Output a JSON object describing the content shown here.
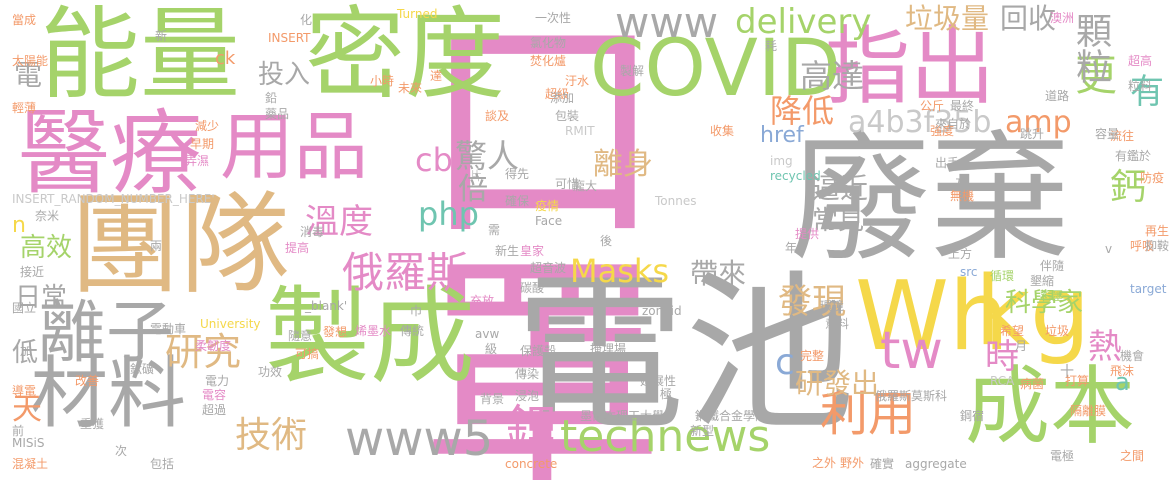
{
  "palette": {
    "green": "#a5d36a",
    "pink": "#e48ac6",
    "gray": "#a8a8a8",
    "tan": "#e0b983",
    "orange": "#f39a6a",
    "yellow": "#f5d84a",
    "blue": "#8aa9d6",
    "teal": "#6fc5b0",
    "lightgray": "#c9c9c9"
  },
  "words": [
    {
      "text": "口罩",
      "color": "pink",
      "vertical": true
    },
    {
      "text": "電池",
      "color": "gray"
    },
    {
      "text": "廢棄",
      "color": "gray"
    },
    {
      "text": "能量",
      "color": "green"
    },
    {
      "text": "密度",
      "color": "green"
    },
    {
      "text": "團隊",
      "color": "tan"
    },
    {
      "text": "醫療",
      "color": "pink"
    },
    {
      "text": "製成",
      "color": "green"
    },
    {
      "text": "指出",
      "color": "pink"
    },
    {
      "text": "Wh",
      "color": "yellow"
    },
    {
      "text": "kg",
      "color": "yellow"
    },
    {
      "text": "成本",
      "color": "green"
    },
    {
      "text": "材料",
      "color": "gray"
    },
    {
      "text": "COVID",
      "color": "green"
    },
    {
      "text": "用品",
      "color": "pink"
    },
    {
      "text": "離子",
      "color": "gray"
    },
    {
      "text": "www5",
      "color": "gray"
    },
    {
      "text": "technews",
      "color": "green"
    },
    {
      "text": "俄羅斯",
      "color": "pink"
    },
    {
      "text": "www",
      "color": "gray"
    },
    {
      "text": "更",
      "color": "green"
    },
    {
      "text": "delivery",
      "color": "green"
    },
    {
      "text": "Masks",
      "color": "yellow"
    },
    {
      "text": "tw",
      "color": "pink"
    },
    {
      "text": "鋰",
      "color": "pink"
    },
    {
      "text": "利用",
      "color": "orange"
    },
    {
      "text": "研究",
      "color": "tan"
    },
    {
      "text": "技術",
      "color": "tan"
    },
    {
      "text": "php",
      "color": "teal"
    },
    {
      "text": "cb",
      "color": "pink"
    },
    {
      "text": "amp",
      "color": "orange"
    },
    {
      "text": "溫度",
      "color": "pink"
    },
    {
      "text": "垃圾量",
      "color": "tan"
    },
    {
      "text": "顆粒",
      "color": "gray"
    },
    {
      "text": "高達",
      "color": "gray"
    },
    {
      "text": "降低",
      "color": "orange"
    },
    {
      "text": "a4b3f35b",
      "color": "lightgray"
    },
    {
      "text": "回收",
      "color": "gray"
    },
    {
      "text": "驚人",
      "color": "gray"
    },
    {
      "text": "倍",
      "color": "gray"
    },
    {
      "text": "離身",
      "color": "tan"
    },
    {
      "text": "逼近",
      "color": "gray"
    },
    {
      "text": "常見",
      "color": "gray"
    },
    {
      "text": "發現",
      "color": "tan"
    },
    {
      "text": "科學家",
      "color": "green"
    },
    {
      "text": "熱",
      "color": "pink"
    },
    {
      "text": "時",
      "color": "pink"
    },
    {
      "text": "帶來",
      "color": "gray"
    },
    {
      "text": "研發出",
      "color": "tan"
    },
    {
      "text": "有",
      "color": "teal"
    },
    {
      "text": "鈣",
      "color": "green"
    },
    {
      "text": "投入",
      "color": "gray"
    },
    {
      "text": "高效",
      "color": "green"
    },
    {
      "text": "日常",
      "color": "gray"
    },
    {
      "text": "電",
      "color": "gray"
    },
    {
      "text": "天",
      "color": "orange"
    },
    {
      "text": "低",
      "color": "gray"
    },
    {
      "text": "href",
      "color": "blue"
    },
    {
      "text": "c",
      "color": "blue"
    },
    {
      "text": "n",
      "color": "yellow"
    },
    {
      "text": "ck",
      "color": "orange"
    },
    {
      "text": "a",
      "color": "teal"
    },
    {
      "text": "INSERT_RANDOM_NUMBER_HERE'",
      "color": "lightgray"
    },
    {
      "text": "太陽能",
      "color": "orange"
    },
    {
      "text": "超高",
      "color": "pink"
    },
    {
      "text": "粒料",
      "color": "gray"
    },
    {
      "text": "澳洲",
      "color": "pink"
    },
    {
      "text": "氯化物",
      "color": "gray"
    },
    {
      "text": "一次性",
      "color": "gray"
    },
    {
      "text": "Turned",
      "color": "yellow"
    },
    {
      "text": "當成",
      "color": "orange"
    },
    {
      "text": "化",
      "color": "gray"
    },
    {
      "text": "焚化爐",
      "color": "orange"
    },
    {
      "text": "製解",
      "color": "gray"
    },
    {
      "text": "汙水",
      "color": "orange"
    },
    {
      "text": "超級",
      "color": "orange"
    },
    {
      "text": "包裝",
      "color": "gray"
    },
    {
      "text": "RMIT",
      "color": "lightgray"
    },
    {
      "text": "收集",
      "color": "orange"
    },
    {
      "text": "img",
      "color": "lightgray"
    },
    {
      "text": "recycled",
      "color": "teal"
    },
    {
      "text": "Tonnes",
      "color": "lightgray"
    },
    {
      "text": "Face",
      "color": "gray"
    },
    {
      "text": "新生",
      "color": "gray"
    },
    {
      "text": "疫情",
      "color": "yellow"
    },
    {
      "text": "超音波",
      "color": "gray"
    },
    {
      "text": "皇家",
      "color": "pink"
    },
    {
      "text": "碳酸",
      "color": "gray"
    },
    {
      "text": "University",
      "color": "yellow"
    },
    {
      "text": "zoneid",
      "color": "gray"
    },
    {
      "text": "保護殼",
      "color": "gray"
    },
    {
      "text": "掩埋場",
      "color": "gray"
    },
    {
      "text": "傳染",
      "color": "gray"
    },
    {
      "text": "延展性",
      "color": "gray"
    },
    {
      "text": "墨爾本理工大學",
      "color": "gray"
    },
    {
      "text": "鋼鐵合金學院",
      "color": "gray"
    },
    {
      "text": "新型",
      "color": "gray"
    },
    {
      "text": "aggregate",
      "color": "gray"
    },
    {
      "text": "concrete",
      "color": "orange"
    },
    {
      "text": "混凝土",
      "color": "orange"
    },
    {
      "text": "MISiS",
      "color": "gray"
    },
    {
      "text": "電極",
      "color": "gray"
    },
    {
      "text": "之間",
      "color": "orange"
    },
    {
      "text": "確實",
      "color": "gray"
    },
    {
      "text": "俄羅斯莫斯科",
      "color": "gray"
    },
    {
      "text": "鋼宿",
      "color": "gray"
    },
    {
      "text": "隔離膜",
      "color": "orange"
    },
    {
      "text": "飛沫",
      "color": "orange"
    },
    {
      "text": "機會",
      "color": "gray"
    },
    {
      "text": "打算",
      "color": "orange"
    },
    {
      "text": "病菌",
      "color": "orange"
    },
    {
      "text": "完整",
      "color": "orange"
    },
    {
      "text": "意料",
      "color": "gray"
    },
    {
      "text": "環境",
      "color": "gray"
    },
    {
      "text": "石墨",
      "color": "green"
    },
    {
      "text": "希望",
      "color": "orange"
    },
    {
      "text": "循環",
      "color": "green"
    },
    {
      "text": "target",
      "color": "blue"
    },
    {
      "text": "再生",
      "color": "orange"
    },
    {
      "text": "呼吸",
      "color": "orange"
    },
    {
      "text": "抑鞍",
      "color": "gray"
    },
    {
      "text": "防疫",
      "color": "orange"
    },
    {
      "text": "有鑑於",
      "color": "gray"
    },
    {
      "text": "流往",
      "color": "orange"
    },
    {
      "text": "容量",
      "color": "gray"
    },
    {
      "text": "跳升",
      "color": "gray"
    },
    {
      "text": "道路",
      "color": "gray"
    },
    {
      "text": "輕薄",
      "color": "orange"
    },
    {
      "text": "藥品",
      "color": "gray"
    },
    {
      "text": "減少",
      "color": "orange"
    },
    {
      "text": "早期",
      "color": "orange"
    },
    {
      "text": "弄濕",
      "color": "pink"
    },
    {
      "text": "奈米",
      "color": "gray"
    },
    {
      "text": "接近",
      "color": "gray"
    },
    {
      "text": "國立",
      "color": "gray"
    },
    {
      "text": "導電",
      "color": "orange"
    },
    {
      "text": "前",
      "color": "gray"
    },
    {
      "text": "重獲",
      "color": "gray"
    },
    {
      "text": "超過",
      "color": "gray"
    },
    {
      "text": "電容",
      "color": "pink"
    },
    {
      "text": "電力",
      "color": "gray"
    },
    {
      "text": "柔韌度",
      "color": "pink"
    },
    {
      "text": "改善",
      "color": "orange"
    },
    {
      "text": "電動車",
      "color": "gray"
    },
    {
      "text": "包括",
      "color": "gray"
    },
    {
      "text": "次",
      "color": "gray"
    },
    {
      "text": "鈦礦",
      "color": "gray"
    },
    {
      "text": "功效",
      "color": "gray"
    },
    {
      "text": "可搞",
      "color": "orange"
    },
    {
      "text": "隨意",
      "color": "gray"
    },
    {
      "text": "提高",
      "color": "pink"
    },
    {
      "text": "發想",
      "color": "orange"
    },
    {
      "text": "烯墨水",
      "color": "pink"
    },
    {
      "text": "傳統",
      "color": "gray"
    },
    {
      "text": "充放",
      "color": "pink"
    },
    {
      "text": "背景",
      "color": "gray"
    },
    {
      "text": "浸泡",
      "color": "gray"
    },
    {
      "text": "出手",
      "color": "gray"
    },
    {
      "text": "強度",
      "color": "orange"
    },
    {
      "text": "公斤",
      "color": "orange"
    },
    {
      "text": "最終",
      "color": "gray"
    },
    {
      "text": "來自於",
      "color": "gray"
    },
    {
      "text": "提供",
      "color": "pink"
    },
    {
      "text": "得先",
      "color": "gray"
    },
    {
      "text": "確保",
      "color": "gray"
    },
    {
      "text": "龐大",
      "color": "gray"
    },
    {
      "text": "可惜",
      "color": "gray"
    },
    {
      "text": "談及",
      "color": "orange"
    },
    {
      "text": "添加",
      "color": "gray"
    },
    {
      "text": "未來",
      "color": "orange"
    },
    {
      "text": "小時",
      "color": "orange"
    },
    {
      "text": "達",
      "color": "orange"
    },
    {
      "text": "新",
      "color": "gray"
    },
    {
      "text": "消毒",
      "color": "gray"
    },
    {
      "text": "_blank'",
      "color": "gray"
    },
    {
      "text": "INSERT",
      "color": "orange"
    },
    {
      "text": "src",
      "color": "blue"
    },
    {
      "text": "RCA",
      "color": "lightgray"
    },
    {
      "text": "avw",
      "color": "gray"
    },
    {
      "text": "上方",
      "color": "gray"
    },
    {
      "text": "無機",
      "color": "orange"
    },
    {
      "text": "伴隨",
      "color": "gray"
    },
    {
      "text": "墾縮",
      "color": "gray"
    },
    {
      "text": "垃圾",
      "color": "orange"
    },
    {
      "text": "野外",
      "color": "orange"
    },
    {
      "text": "之外",
      "color": "orange"
    },
    {
      "text": "年",
      "color": "gray"
    },
    {
      "text": "需",
      "color": "gray"
    },
    {
      "text": "極",
      "color": "gray"
    },
    {
      "text": "月",
      "color": "gray"
    },
    {
      "text": "加",
      "color": "gray"
    },
    {
      "text": "級",
      "color": "gray"
    },
    {
      "text": "片",
      "color": "lightgray"
    },
    {
      "text": "耗",
      "color": "gray"
    },
    {
      "text": "互",
      "color": "gray"
    },
    {
      "text": "v",
      "color": "gray"
    },
    {
      "text": "十",
      "color": "gray"
    },
    {
      "text": "鉛",
      "color": "gray"
    },
    {
      "text": "倍",
      "color": "gray"
    },
    {
      "text": "兩",
      "color": "gray"
    },
    {
      "text": "巾",
      "color": "gray"
    },
    {
      "text": "後",
      "color": "gray"
    }
  ]
}
